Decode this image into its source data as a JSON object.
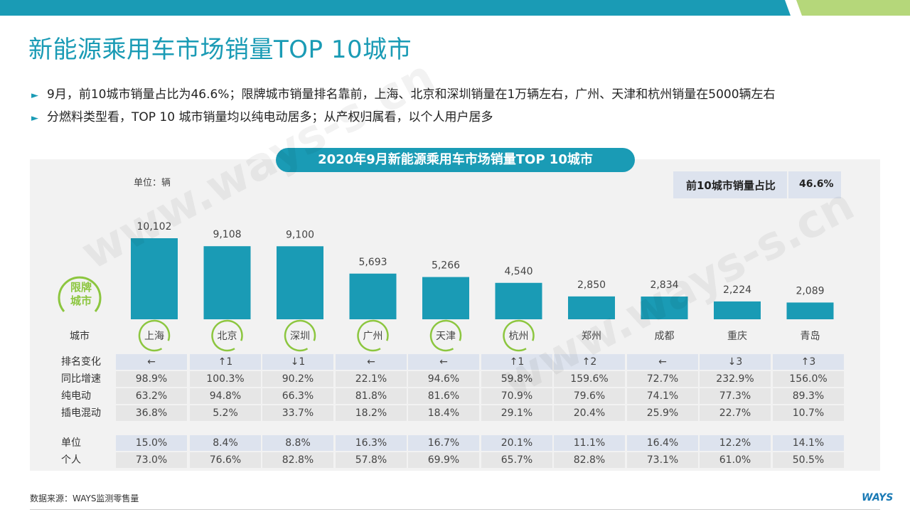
{
  "page": {
    "title": "新能源乘用车市场销量TOP 10城市",
    "bullets": [
      "9月，前10城市销量占比为46.6%；限牌城市销量排名靠前，上海、北京和深圳销量在1万辆左右，广州、天津和杭州销量在5000辆左右",
      "分燃料类型看，TOP 10 城市销量均以纯电动居多；从产权归属看，以个人用户居多"
    ],
    "bullet_marker": "►",
    "source": "数据来源：WAYS监测零售量",
    "logo": "WAYS",
    "watermark": "www.ways-s.cn"
  },
  "colors": {
    "accent": "#1a9bb5",
    "limit": "#8cc63f",
    "shade": "#dde3ee",
    "panel": "#f2f2f2"
  },
  "chart_data": {
    "type": "bar",
    "title": "2020年9月新能源乘用车市场销量TOP 10城市",
    "unit": "单位：辆",
    "share_label": "前10城市销量占比",
    "share_value": "46.6%",
    "limit_badge": "限牌\n城市",
    "city_row_label": "城市",
    "categories": [
      "上海",
      "北京",
      "深圳",
      "广州",
      "天津",
      "杭州",
      "郑州",
      "成都",
      "重庆",
      "青岛"
    ],
    "limited": [
      true,
      true,
      true,
      true,
      true,
      true,
      false,
      false,
      false,
      false
    ],
    "values": [
      10102,
      9108,
      9100,
      5693,
      5266,
      4540,
      2850,
      2834,
      2224,
      2089
    ],
    "value_labels": [
      "10,102",
      "9,108",
      "9,100",
      "5,693",
      "5,266",
      "4,540",
      "2,850",
      "2,834",
      "2,224",
      "2,089"
    ],
    "table": {
      "rows1": [
        {
          "label": "排名变化",
          "values": [
            "←",
            "↑1",
            "↓1",
            "←",
            "←",
            "↑1",
            "↑2",
            "←",
            "↓3",
            "↑3"
          ]
        },
        {
          "label": "同比增速",
          "values": [
            "98.9%",
            "100.3%",
            "90.2%",
            "22.1%",
            "94.6%",
            "59.8%",
            "159.6%",
            "72.7%",
            "232.9%",
            "156.0%"
          ]
        },
        {
          "label": "纯电动",
          "values": [
            "63.2%",
            "94.8%",
            "66.3%",
            "81.8%",
            "81.6%",
            "70.9%",
            "79.6%",
            "74.1%",
            "77.3%",
            "89.3%"
          ]
        },
        {
          "label": "插电混动",
          "values": [
            "36.8%",
            "5.2%",
            "33.7%",
            "18.2%",
            "18.4%",
            "29.1%",
            "20.4%",
            "25.9%",
            "22.7%",
            "10.7%"
          ]
        }
      ],
      "rows2": [
        {
          "label": "单位",
          "values": [
            "15.0%",
            "8.4%",
            "8.8%",
            "16.3%",
            "16.7%",
            "20.1%",
            "11.1%",
            "16.4%",
            "12.2%",
            "14.1%"
          ]
        },
        {
          "label": "个人",
          "values": [
            "73.0%",
            "76.6%",
            "82.8%",
            "57.8%",
            "69.9%",
            "65.7%",
            "82.8%",
            "73.1%",
            "61.0%",
            "50.5%"
          ]
        }
      ]
    }
  }
}
